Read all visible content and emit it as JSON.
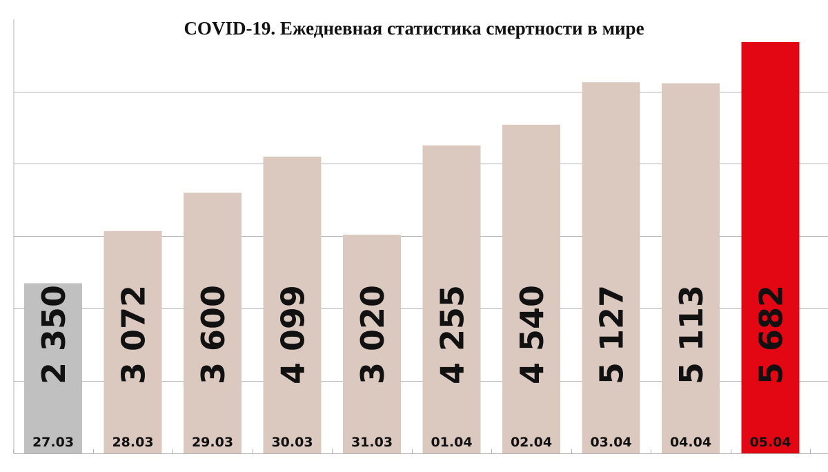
{
  "chart_data": {
    "type": "bar",
    "title": "COVID-19. Ежедневная статистика смертности в мире",
    "xlabel": "",
    "ylabel": "",
    "categories": [
      "27.03",
      "28.03",
      "29.03",
      "30.03",
      "31.03",
      "01.04",
      "02.04",
      "03.04",
      "04.04",
      "05.04"
    ],
    "values": [
      2350,
      3072,
      3600,
      4099,
      3020,
      4255,
      4540,
      5127,
      5113,
      5682
    ],
    "value_labels": [
      "2 350",
      "3 072",
      "3 600",
      "4 099",
      "3 020",
      "4 255",
      "4 540",
      "5 127",
      "5 113",
      "5 682"
    ],
    "ylim": [
      0,
      6000
    ],
    "grid": true,
    "legend": "none",
    "colors": {
      "first": "#c0c0c0",
      "default": "#dbc8bf",
      "last": "#e30613",
      "grid": "#b3b3b3",
      "text": "#111111"
    }
  }
}
